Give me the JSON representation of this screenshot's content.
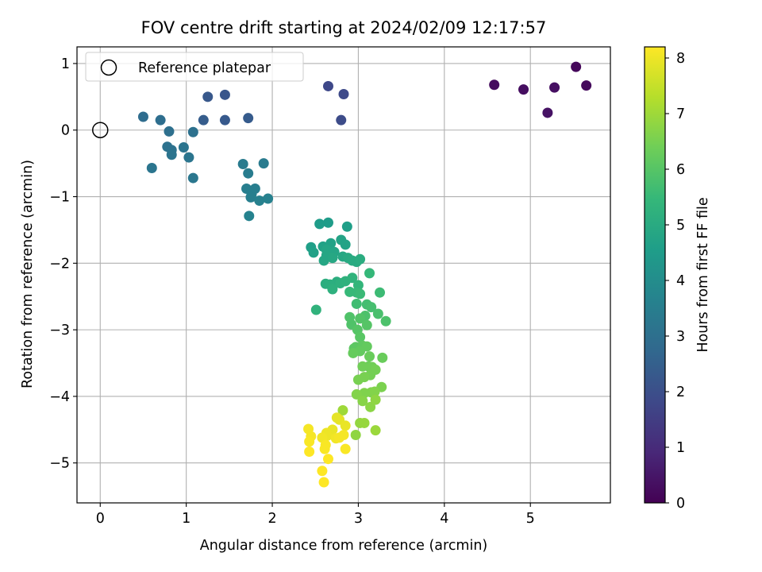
{
  "chart_data": {
    "type": "scatter",
    "title": "FOV centre drift starting at 2024/02/09 12:17:57",
    "xlabel": "Angular distance from reference (arcmin)",
    "ylabel": "Rotation from reference (arcmin)",
    "xlim": [
      -0.27,
      5.93
    ],
    "ylim": [
      -5.6,
      1.25
    ],
    "xticks": [
      "0",
      "1",
      "2",
      "3",
      "4",
      "5"
    ],
    "yticks": [
      "−5",
      "−4",
      "−3",
      "−2",
      "−1",
      "0",
      "1"
    ],
    "grid": true,
    "legend": {
      "location": "upper-left",
      "entries": [
        "Reference platepar"
      ]
    },
    "reference_point": {
      "x": 0,
      "y": 0,
      "marker": "hollow-circle"
    },
    "colorbar": {
      "label": "Hours from first FF file",
      "range": [
        0,
        8.2
      ],
      "ticks": [
        "0",
        "1",
        "2",
        "3",
        "4",
        "5",
        "6",
        "7",
        "8"
      ],
      "colormap": "viridis",
      "colors": [
        "#440154",
        "#482878",
        "#3e4989",
        "#31688e",
        "#26828e",
        "#1f9e89",
        "#35b779",
        "#6ece58",
        "#b5de2b",
        "#fde725"
      ]
    },
    "series": [
      {
        "points": [
          [
            5.53,
            0.95,
            0.15
          ],
          [
            5.65,
            0.67,
            0.2
          ],
          [
            4.58,
            0.68,
            0.25
          ],
          [
            4.92,
            0.61,
            0.3
          ],
          [
            5.28,
            0.64,
            0.35
          ],
          [
            5.2,
            0.26,
            0.4
          ],
          [
            2.65,
            0.66,
            1.8
          ],
          [
            2.83,
            0.54,
            1.85
          ],
          [
            2.8,
            0.15,
            1.9
          ],
          [
            1.45,
            0.53,
            2.2
          ],
          [
            1.25,
            0.5,
            2.25
          ],
          [
            1.45,
            0.15,
            2.3
          ],
          [
            1.72,
            0.18,
            2.35
          ],
          [
            1.2,
            0.15,
            2.4
          ],
          [
            0.5,
            0.2,
            2.9
          ],
          [
            0.7,
            0.15,
            2.95
          ],
          [
            0.8,
            -0.02,
            3.0
          ],
          [
            1.08,
            -0.03,
            3.05
          ],
          [
            0.78,
            -0.25,
            3.1
          ],
          [
            0.83,
            -0.3,
            3.1
          ],
          [
            0.83,
            -0.37,
            3.15
          ],
          [
            0.97,
            -0.26,
            3.15
          ],
          [
            1.03,
            -0.41,
            3.2
          ],
          [
            0.6,
            -0.57,
            3.2
          ],
          [
            1.08,
            -0.72,
            3.25
          ],
          [
            1.66,
            -0.51,
            3.4
          ],
          [
            1.9,
            -0.5,
            3.4
          ],
          [
            1.72,
            -0.65,
            3.45
          ],
          [
            1.7,
            -0.88,
            3.5
          ],
          [
            1.8,
            -0.88,
            3.5
          ],
          [
            1.76,
            -0.96,
            3.55
          ],
          [
            1.75,
            -1.01,
            3.55
          ],
          [
            1.85,
            -1.06,
            3.6
          ],
          [
            1.95,
            -1.03,
            3.6
          ],
          [
            1.73,
            -1.29,
            3.65
          ],
          [
            2.55,
            -1.41,
            4.5
          ],
          [
            2.65,
            -1.39,
            4.5
          ],
          [
            2.87,
            -1.45,
            4.6
          ],
          [
            2.45,
            -1.76,
            4.6
          ],
          [
            2.48,
            -1.84,
            4.65
          ],
          [
            2.59,
            -1.75,
            4.7
          ],
          [
            2.68,
            -1.7,
            4.7
          ],
          [
            2.8,
            -1.65,
            4.75
          ],
          [
            2.85,
            -1.72,
            4.75
          ],
          [
            2.63,
            -1.8,
            4.8
          ],
          [
            2.72,
            -1.83,
            4.8
          ],
          [
            2.63,
            -1.88,
            4.85
          ],
          [
            2.6,
            -1.96,
            4.85
          ],
          [
            2.7,
            -1.92,
            4.9
          ],
          [
            2.82,
            -1.9,
            4.9
          ],
          [
            2.88,
            -1.92,
            4.95
          ],
          [
            2.93,
            -1.96,
            5.0
          ],
          [
            2.98,
            -1.98,
            5.0
          ],
          [
            3.02,
            -1.94,
            5.05
          ],
          [
            2.75,
            -2.28,
            5.1
          ],
          [
            2.62,
            -2.31,
            5.1
          ],
          [
            2.67,
            -2.32,
            5.15
          ],
          [
            2.7,
            -2.39,
            5.2
          ],
          [
            2.79,
            -2.3,
            5.2
          ],
          [
            2.85,
            -2.27,
            5.25
          ],
          [
            2.51,
            -2.7,
            5.3
          ],
          [
            2.93,
            -2.22,
            5.3
          ],
          [
            3.0,
            -2.33,
            5.4
          ],
          [
            3.13,
            -2.15,
            5.45
          ],
          [
            2.9,
            -2.43,
            5.5
          ],
          [
            2.98,
            -2.44,
            5.5
          ],
          [
            3.02,
            -2.46,
            5.55
          ],
          [
            3.25,
            -2.44,
            5.6
          ],
          [
            2.98,
            -2.61,
            5.65
          ],
          [
            3.1,
            -2.62,
            5.7
          ],
          [
            3.15,
            -2.66,
            5.75
          ],
          [
            3.23,
            -2.76,
            5.8
          ],
          [
            3.08,
            -2.79,
            5.85
          ],
          [
            3.32,
            -2.87,
            5.85
          ],
          [
            2.9,
            -2.81,
            5.9
          ],
          [
            2.92,
            -2.92,
            5.9
          ],
          [
            3.02,
            -2.83,
            5.95
          ],
          [
            3.1,
            -2.93,
            6.0
          ],
          [
            2.99,
            -3.0,
            6.0
          ],
          [
            3.02,
            -3.11,
            6.05
          ],
          [
            2.95,
            -3.28,
            6.1
          ],
          [
            2.97,
            -3.26,
            6.1
          ],
          [
            3.05,
            -3.24,
            6.15
          ],
          [
            3.1,
            -3.25,
            6.2
          ],
          [
            3.02,
            -3.32,
            6.2
          ],
          [
            2.94,
            -3.35,
            6.25
          ],
          [
            3.13,
            -3.4,
            6.3
          ],
          [
            3.28,
            -3.42,
            6.3
          ],
          [
            3.12,
            -3.55,
            6.35
          ],
          [
            3.05,
            -3.55,
            6.4
          ],
          [
            3.16,
            -3.56,
            6.4
          ],
          [
            3.2,
            -3.6,
            6.45
          ],
          [
            3.14,
            -3.68,
            6.45
          ],
          [
            3.07,
            -3.71,
            6.5
          ],
          [
            3.0,
            -3.75,
            6.5
          ],
          [
            3.27,
            -3.86,
            6.55
          ],
          [
            3.15,
            -3.94,
            6.6
          ],
          [
            3.07,
            -3.95,
            6.6
          ],
          [
            3.19,
            -3.93,
            6.65
          ],
          [
            2.98,
            -3.97,
            6.65
          ],
          [
            3.05,
            -4.07,
            6.7
          ],
          [
            3.14,
            -4.16,
            6.75
          ],
          [
            3.2,
            -4.05,
            6.8
          ],
          [
            2.97,
            -4.58,
            6.8
          ],
          [
            3.02,
            -4.4,
            6.85
          ],
          [
            3.07,
            -4.4,
            6.9
          ],
          [
            3.2,
            -4.51,
            6.95
          ],
          [
            2.82,
            -4.21,
            7.0
          ],
          [
            2.78,
            -4.35,
            7.9
          ],
          [
            2.75,
            -4.32,
            7.9
          ],
          [
            2.85,
            -4.44,
            7.95
          ],
          [
            2.7,
            -4.5,
            7.95
          ],
          [
            2.63,
            -4.55,
            8.0
          ],
          [
            2.64,
            -4.59,
            8.0
          ],
          [
            2.58,
            -4.62,
            8.05
          ],
          [
            2.74,
            -4.63,
            8.05
          ],
          [
            2.78,
            -4.62,
            8.1
          ],
          [
            2.83,
            -4.58,
            8.1
          ],
          [
            2.42,
            -4.49,
            8.1
          ],
          [
            2.45,
            -4.6,
            8.1
          ],
          [
            2.43,
            -4.68,
            8.15
          ],
          [
            2.62,
            -4.73,
            8.15
          ],
          [
            2.61,
            -4.79,
            8.15
          ],
          [
            2.85,
            -4.79,
            8.15
          ],
          [
            2.43,
            -4.83,
            8.2
          ],
          [
            2.65,
            -4.94,
            8.2
          ],
          [
            2.58,
            -5.12,
            8.2
          ],
          [
            2.6,
            -5.29,
            8.2
          ]
        ]
      }
    ]
  }
}
